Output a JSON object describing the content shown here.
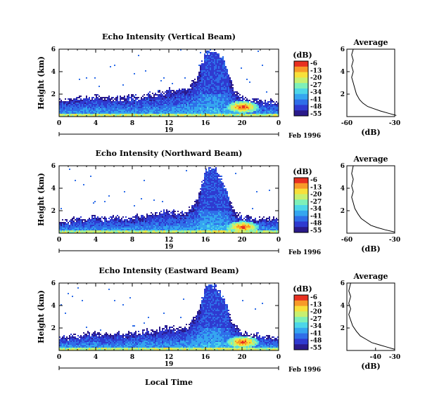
{
  "figure": {
    "x_axis_label": "Local Time",
    "date_label": "Feb 1996",
    "day_label": "19",
    "colorbar_unit": "(dB)",
    "profile_title": "Average",
    "profile_xlabel": "(dB)"
  },
  "colors": {
    "colormap": [
      "#2a1a8a",
      "#2f3ad0",
      "#2f6ee8",
      "#35a6f0",
      "#4dd6e8",
      "#7ef0b8",
      "#c8f070",
      "#f8e03a",
      "#f89a28",
      "#e83020"
    ]
  },
  "chart_data": [
    {
      "type": "heatmap",
      "title": "Echo Intensity (Vertical Beam)",
      "ylabel": "Height (km)",
      "x": {
        "range": [
          0,
          24
        ],
        "ticks": [
          "0",
          "4",
          "8",
          "12",
          "16",
          "20",
          "0"
        ],
        "tick_values": [
          0,
          4,
          8,
          12,
          16,
          20,
          24
        ]
      },
      "y": {
        "range": [
          0,
          6
        ],
        "ticks": [
          "2",
          "4",
          "6"
        ],
        "tick_values": [
          2,
          4,
          6
        ]
      },
      "colorbar": {
        "range": [
          -55,
          -6
        ],
        "ticks": [
          "-6",
          "-13",
          "-20",
          "-27",
          "-34",
          "-41",
          "-48",
          "-55"
        ]
      },
      "echo_top_km": [
        [
          0,
          1.6
        ],
        [
          2,
          1.8
        ],
        [
          4,
          2.0
        ],
        [
          6,
          1.8
        ],
        [
          8,
          1.9
        ],
        [
          10,
          2.1
        ],
        [
          11,
          2.3
        ],
        [
          12,
          2.5
        ],
        [
          13,
          2.6
        ],
        [
          14,
          2.8
        ],
        [
          15,
          3.6
        ],
        [
          16,
          6.0
        ],
        [
          17,
          6.0
        ],
        [
          18,
          5.2
        ],
        [
          19,
          2.6
        ],
        [
          20,
          1.8
        ],
        [
          22,
          1.6
        ],
        [
          24,
          1.5
        ]
      ],
      "hotspot": {
        "time_h": 20,
        "height_km": 0.9,
        "db": -6
      },
      "profile": {
        "xrange": [
          -60,
          -30
        ],
        "ticks": [
          "-60",
          "-30"
        ],
        "tick_values": [
          -60,
          -30
        ],
        "yrange": [
          0,
          6
        ],
        "yticks": [
          "2",
          "4",
          "6"
        ],
        "ytick_values": [
          2,
          4,
          6
        ],
        "points": [
          [
            -29,
            0.1
          ],
          [
            -34,
            0.3
          ],
          [
            -39,
            0.5
          ],
          [
            -43,
            0.7
          ],
          [
            -47,
            0.9
          ],
          [
            -50,
            1.2
          ],
          [
            -52,
            1.5
          ],
          [
            -54,
            2.0
          ],
          [
            -55,
            2.5
          ],
          [
            -56,
            3.0
          ],
          [
            -57,
            3.5
          ],
          [
            -56,
            4.0
          ],
          [
            -57,
            4.5
          ],
          [
            -56,
            5.0
          ],
          [
            -57,
            5.5
          ],
          [
            -56,
            6.0
          ]
        ]
      }
    },
    {
      "type": "heatmap",
      "title": "Echo Intensity (Northward Beam)",
      "ylabel": "Height (km)",
      "x": {
        "range": [
          0,
          24
        ],
        "ticks": [
          "0",
          "4",
          "8",
          "12",
          "16",
          "20",
          "0"
        ],
        "tick_values": [
          0,
          4,
          8,
          12,
          16,
          20,
          24
        ]
      },
      "y": {
        "range": [
          0,
          6
        ],
        "ticks": [
          "2",
          "4",
          "6"
        ],
        "tick_values": [
          2,
          4,
          6
        ]
      },
      "colorbar": {
        "range": [
          -55,
          -6
        ],
        "ticks": [
          "-6",
          "-13",
          "-20",
          "-27",
          "-34",
          "-41",
          "-48",
          "-55"
        ]
      },
      "echo_top_km": [
        [
          0,
          1.2
        ],
        [
          2,
          1.4
        ],
        [
          4,
          1.6
        ],
        [
          6,
          1.5
        ],
        [
          8,
          1.6
        ],
        [
          10,
          1.8
        ],
        [
          11,
          2.0
        ],
        [
          12,
          2.1
        ],
        [
          13,
          2.0
        ],
        [
          14,
          2.2
        ],
        [
          15,
          3.2
        ],
        [
          16,
          5.8
        ],
        [
          17,
          5.9
        ],
        [
          18,
          4.5
        ],
        [
          19,
          2.2
        ],
        [
          20,
          1.6
        ],
        [
          22,
          1.5
        ],
        [
          24,
          1.4
        ]
      ],
      "hotspot": {
        "time_h": 20,
        "height_km": 0.6,
        "db": -6
      },
      "profile": {
        "xrange": [
          -60,
          -30
        ],
        "ticks": [
          "-60",
          "-30"
        ],
        "tick_values": [
          -60,
          -30
        ],
        "yrange": [
          0,
          6
        ],
        "yticks": [
          "2",
          "4",
          "6"
        ],
        "ytick_values": [
          2,
          4,
          6
        ],
        "points": [
          [
            -30,
            0.1
          ],
          [
            -36,
            0.3
          ],
          [
            -41,
            0.5
          ],
          [
            -45,
            0.7
          ],
          [
            -48,
            1.0
          ],
          [
            -51,
            1.3
          ],
          [
            -53,
            1.7
          ],
          [
            -55,
            2.2
          ],
          [
            -56,
            2.7
          ],
          [
            -57,
            3.2
          ],
          [
            -56,
            3.7
          ],
          [
            -57,
            4.2
          ],
          [
            -56,
            4.8
          ],
          [
            -57,
            5.3
          ],
          [
            -56,
            6.0
          ]
        ]
      }
    },
    {
      "type": "heatmap",
      "title": "Echo Intensity (Eastward Beam)",
      "ylabel": "Height (km)",
      "x": {
        "range": [
          0,
          24
        ],
        "ticks": [
          "0",
          "4",
          "8",
          "12",
          "16",
          "20",
          "0"
        ],
        "tick_values": [
          0,
          4,
          8,
          12,
          16,
          20,
          24
        ]
      },
      "y": {
        "range": [
          0,
          6
        ],
        "ticks": [
          "2",
          "4",
          "6"
        ],
        "tick_values": [
          2,
          4,
          6
        ]
      },
      "colorbar": {
        "range": [
          -55,
          -6
        ],
        "ticks": [
          "-6",
          "-13",
          "-20",
          "-27",
          "-34",
          "-41",
          "-48",
          "-55"
        ]
      },
      "echo_top_km": [
        [
          0,
          1.3
        ],
        [
          2,
          1.5
        ],
        [
          4,
          1.7
        ],
        [
          6,
          1.6
        ],
        [
          8,
          1.7
        ],
        [
          10,
          1.9
        ],
        [
          11,
          2.1
        ],
        [
          12,
          2.2
        ],
        [
          13,
          2.1
        ],
        [
          14,
          2.3
        ],
        [
          15,
          3.4
        ],
        [
          16,
          5.9
        ],
        [
          17,
          6.0
        ],
        [
          18,
          4.8
        ],
        [
          19,
          2.4
        ],
        [
          20,
          1.7
        ],
        [
          22,
          1.5
        ],
        [
          24,
          1.4
        ]
      ],
      "hotspot": {
        "time_h": 20,
        "height_km": 0.8,
        "db": -6
      },
      "profile": {
        "xrange": [
          -55,
          -30
        ],
        "ticks": [
          "-40",
          "-30"
        ],
        "tick_values": [
          -40,
          -30
        ],
        "yrange": [
          0,
          6
        ],
        "yticks": [
          "2",
          "4",
          "6"
        ],
        "ytick_values": [
          2,
          4,
          6
        ],
        "points": [
          [
            -30,
            0.1
          ],
          [
            -34,
            0.3
          ],
          [
            -38,
            0.5
          ],
          [
            -42,
            0.7
          ],
          [
            -45,
            1.0
          ],
          [
            -48,
            1.3
          ],
          [
            -50,
            1.7
          ],
          [
            -52,
            2.2
          ],
          [
            -53,
            2.7
          ],
          [
            -54,
            3.2
          ],
          [
            -53,
            3.7
          ],
          [
            -54,
            4.2
          ],
          [
            -53,
            4.8
          ],
          [
            -54,
            5.3
          ],
          [
            -53,
            6.0
          ]
        ]
      }
    }
  ]
}
